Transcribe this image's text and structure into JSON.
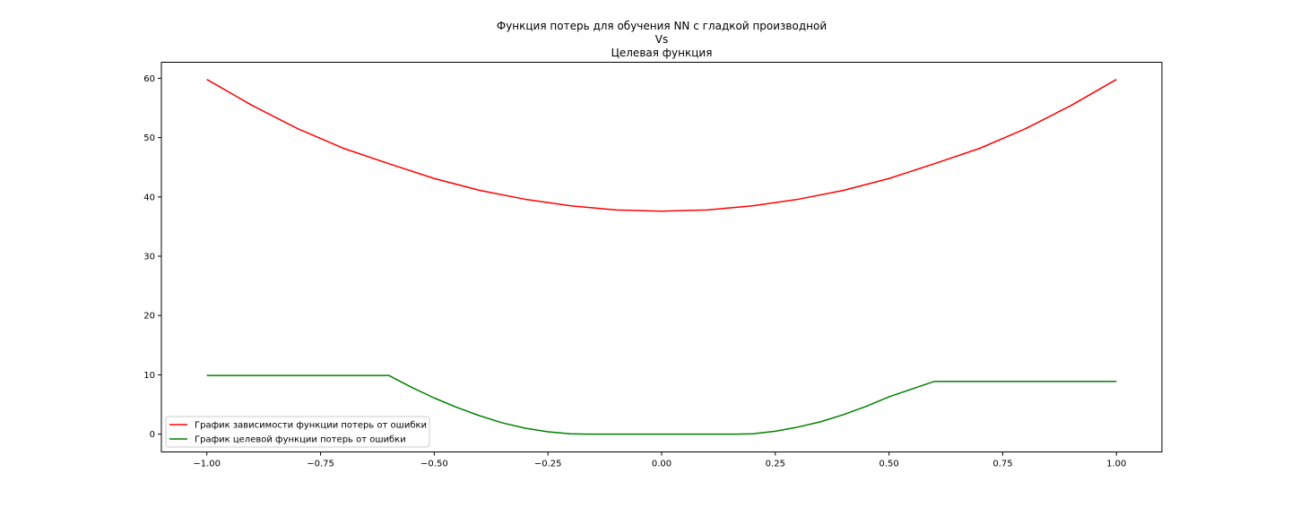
{
  "chart_data": {
    "type": "line",
    "title_lines": [
      "Функция потерь для обучения NN с гладкой производной",
      "Vs",
      "Целевая функция"
    ],
    "xlabel": "",
    "ylabel": "",
    "xlim": [
      -1.1,
      1.1
    ],
    "ylim": [
      -3,
      62.7
    ],
    "x_ticks": [
      -1.0,
      -0.75,
      -0.5,
      -0.25,
      0.0,
      0.25,
      0.5,
      0.75,
      1.0
    ],
    "x_tick_labels": [
      "−1.00",
      "−0.75",
      "−0.50",
      "−0.25",
      "0.00",
      "0.25",
      "0.50",
      "0.75",
      "1.00"
    ],
    "y_ticks": [
      0,
      10,
      20,
      30,
      40,
      50,
      60
    ],
    "y_tick_labels": [
      "0",
      "10",
      "20",
      "30",
      "40",
      "50",
      "60"
    ],
    "grid": false,
    "legend_position": "lower-left",
    "series": [
      {
        "name": "График зависимости функции потерь от ошибки",
        "color": "#ff0000",
        "x": [
          -1.0,
          -0.9,
          -0.8,
          -0.7,
          -0.6,
          -0.5,
          -0.4,
          -0.3,
          -0.2,
          -0.1,
          0.0,
          0.1,
          0.2,
          0.3,
          0.4,
          0.5,
          0.6,
          0.7,
          0.8,
          0.9,
          1.0
        ],
        "y": [
          59.8,
          55.4,
          51.5,
          48.2,
          45.6,
          43.1,
          41.1,
          39.6,
          38.5,
          37.8,
          37.6,
          37.8,
          38.5,
          39.6,
          41.1,
          43.1,
          45.6,
          48.2,
          51.5,
          55.4,
          59.8
        ]
      },
      {
        "name": "График целевой функции потерь от ошибки",
        "color": "#008000",
        "x": [
          -1.0,
          -0.8,
          -0.6,
          -0.55,
          -0.5,
          -0.45,
          -0.4,
          -0.35,
          -0.3,
          -0.25,
          -0.2,
          -0.165,
          -0.1,
          0.0,
          0.1,
          0.165,
          0.2,
          0.25,
          0.3,
          0.35,
          0.4,
          0.45,
          0.5,
          0.55,
          0.6,
          0.8,
          1.0
        ],
        "y": [
          9.9,
          9.9,
          9.9,
          7.9,
          6.1,
          4.5,
          3.1,
          1.9,
          1.0,
          0.4,
          0.06,
          0.0,
          0.0,
          0.0,
          0.0,
          0.0,
          0.06,
          0.5,
          1.2,
          2.1,
          3.3,
          4.7,
          6.3,
          7.6,
          8.9,
          8.9,
          8.9
        ]
      }
    ]
  }
}
